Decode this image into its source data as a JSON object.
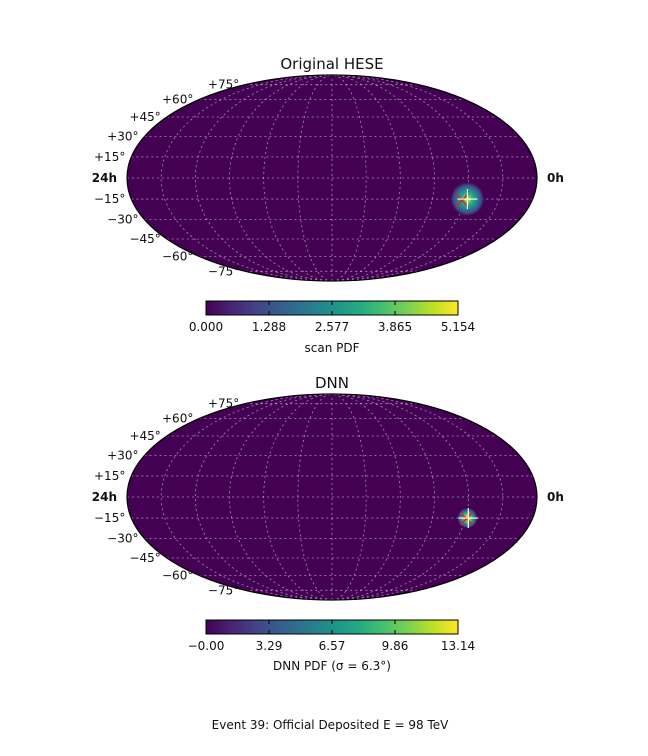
{
  "caption": "Event 39: Official Deposited E = 98 TeV",
  "chart_data": [
    {
      "type": "heatmap",
      "projection": "mollweide",
      "title": "Original HESE",
      "ra_labels": [
        "24h",
        "0h"
      ],
      "dec_labels": [
        "+75°",
        "+60°",
        "+45°",
        "+30°",
        "+15°",
        "−15°",
        "−30°",
        "−45°",
        "−60°",
        "−75°"
      ],
      "colormap": "viridis",
      "colorbar_ticks": [
        "0.000",
        "1.288",
        "2.577",
        "3.865",
        "5.154"
      ],
      "colorbar_label": "scan PDF",
      "colorbar_range": [
        0,
        5.154
      ],
      "hotspot": {
        "ra_hours": 3.9,
        "dec_deg": -15,
        "spread_deg": 6
      },
      "markers": [
        {
          "type": "x",
          "color": "#d62728",
          "ra_hours": 4.2,
          "dec_deg": -16
        },
        {
          "type": "cross",
          "color": "#ffffff",
          "ra_hours": 3.9,
          "dec_deg": -15
        }
      ],
      "grid": true
    },
    {
      "type": "heatmap",
      "projection": "mollweide",
      "title": "DNN",
      "ra_labels": [
        "24h",
        "0h"
      ],
      "dec_labels": [
        "+75°",
        "+60°",
        "+45°",
        "+30°",
        "+15°",
        "−15°",
        "−30°",
        "−45°",
        "−60°",
        "−75°"
      ],
      "colormap": "viridis",
      "colorbar_ticks": [
        "−0.00",
        "3.29",
        "6.57",
        "9.86",
        "13.14"
      ],
      "colorbar_label": "DNN PDF (σ = 6.3°)",
      "colorbar_range": [
        0,
        13.14
      ],
      "hotspot": {
        "ra_hours": 3.9,
        "dec_deg": -15,
        "spread_deg": 3.5
      },
      "markers": [
        {
          "type": "x",
          "color": "#d62728",
          "ra_hours": 3.95,
          "dec_deg": -15.5
        },
        {
          "type": "cross",
          "color": "#ffffff",
          "ra_hours": 3.85,
          "dec_deg": -15
        }
      ],
      "grid": true
    }
  ]
}
